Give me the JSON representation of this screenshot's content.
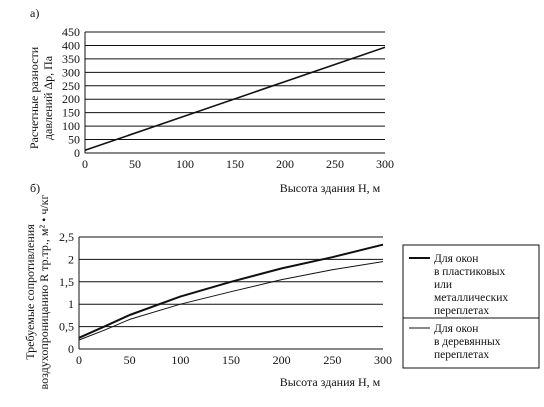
{
  "panel_labels": [
    "а)",
    "б)"
  ],
  "chart_data": [
    {
      "type": "line",
      "panel": "а)",
      "xlabel": "Высота здания H, м",
      "ylabel_lines": [
        "Расчетные разности",
        "давлений Δp, Па"
      ],
      "x_ticks": [
        "0",
        "50",
        "100",
        "150",
        "200",
        "250",
        "300"
      ],
      "y_ticks": [
        "0",
        "50",
        "100",
        "150",
        "200",
        "250",
        "300",
        "350",
        "400",
        "450"
      ],
      "xlim": [
        0,
        300
      ],
      "ylim": [
        0,
        450
      ],
      "grid": "horizontal",
      "series": [
        {
          "x": [
            0,
            300
          ],
          "y": [
            10,
            393
          ]
        }
      ]
    },
    {
      "type": "line",
      "panel": "б)",
      "xlabel": "Высота здания H, м",
      "ylabel_lines": [
        "Требуемые сопротивления",
        "воздухопроницанию R тр.тр., м² • ч/кг"
      ],
      "x_ticks": [
        "0",
        "50",
        "100",
        "150",
        "200",
        "250",
        "300"
      ],
      "y_ticks": [
        "0",
        "0,5",
        "1",
        "1,5",
        "2",
        "2,5"
      ],
      "xlim": [
        0,
        300
      ],
      "ylim": [
        0,
        2.5
      ],
      "grid": "horizontal",
      "legend_position": "right",
      "series": [
        {
          "name": "Для окон в пластиковых или металлических переплетах",
          "legend_lines": [
            "Для окон",
            "в пластиковых",
            "или",
            "металлических",
            "переплетах"
          ],
          "x": [
            0,
            25,
            50,
            100,
            150,
            200,
            250,
            300
          ],
          "y": [
            0.25,
            0.5,
            0.76,
            1.17,
            1.5,
            1.8,
            2.05,
            2.33
          ]
        },
        {
          "name": "Для окон в деревянных переплетах",
          "legend_lines": [
            "Для окон",
            "в деревянных",
            "переплетах"
          ],
          "x": [
            0,
            25,
            50,
            100,
            150,
            200,
            250,
            300
          ],
          "y": [
            0.2,
            0.42,
            0.66,
            1.0,
            1.28,
            1.55,
            1.77,
            1.95
          ]
        }
      ]
    }
  ]
}
